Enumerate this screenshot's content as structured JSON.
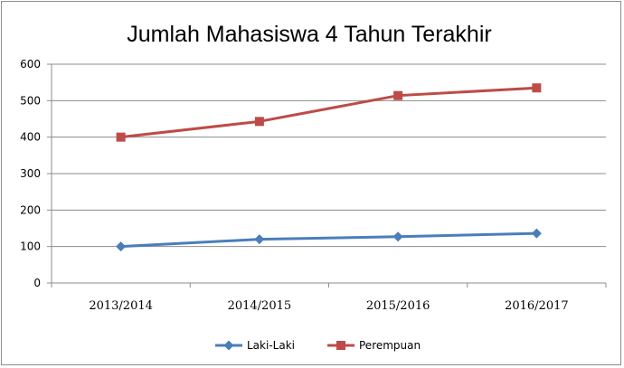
{
  "chart_data": {
    "type": "line",
    "title": "Jumlah Mahasiswa 4 Tahun Terakhir",
    "xlabel": "",
    "ylabel": "",
    "categories": [
      "2013/2014",
      "2014/2015",
      "2015/2016",
      "2016/2017"
    ],
    "ylim": [
      0,
      600
    ],
    "yticks": [
      "0",
      "100",
      "200",
      "300",
      "400",
      "500",
      "600"
    ],
    "grid": true,
    "legend_position": "bottom",
    "series": [
      {
        "name": "Laki-Laki",
        "values": [
          100,
          120,
          127,
          136
        ],
        "color": "#4a7ebb",
        "marker": "diamond"
      },
      {
        "name": "Perempuan",
        "values": [
          400,
          443,
          514,
          535
        ],
        "color": "#be4b48",
        "marker": "square"
      }
    ]
  }
}
